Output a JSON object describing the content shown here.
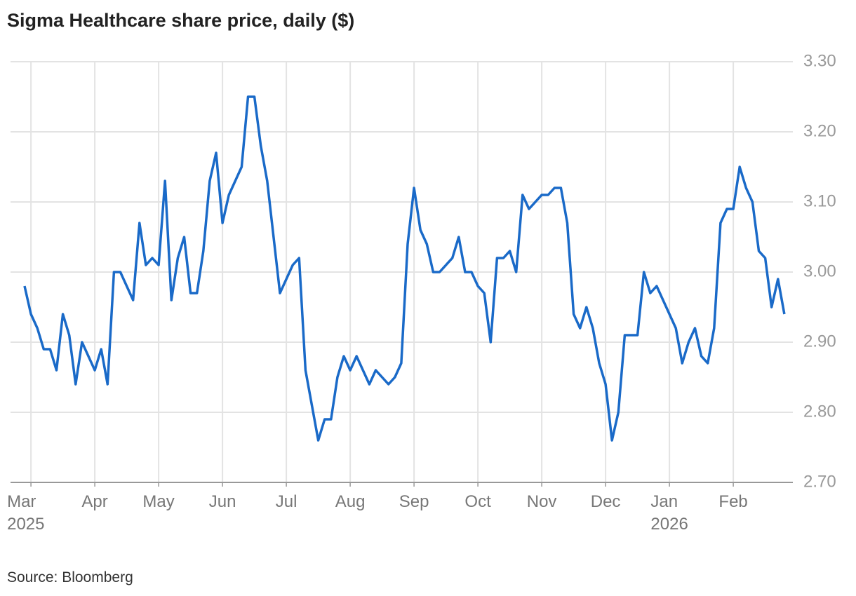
{
  "chart_data": {
    "type": "line",
    "title": "Sigma Healthcare share price, daily ($)",
    "source": "Source: Bloomberg",
    "categories": [
      null,
      "Mar\n2025",
      null,
      null,
      null,
      null,
      null,
      null,
      null,
      null,
      null,
      "Apr",
      null,
      null,
      null,
      null,
      null,
      null,
      null,
      null,
      null,
      "May",
      null,
      null,
      null,
      null,
      null,
      null,
      null,
      null,
      null,
      "Jun",
      null,
      null,
      null,
      null,
      null,
      null,
      null,
      null,
      null,
      "Jul",
      null,
      null,
      null,
      null,
      null,
      null,
      null,
      null,
      null,
      "Aug",
      null,
      null,
      null,
      null,
      null,
      null,
      null,
      null,
      null,
      "Sep",
      null,
      null,
      null,
      null,
      null,
      null,
      null,
      null,
      null,
      "Oct",
      null,
      null,
      null,
      null,
      null,
      null,
      null,
      null,
      null,
      "Nov",
      null,
      null,
      null,
      null,
      null,
      null,
      null,
      null,
      null,
      "Dec",
      null,
      null,
      null,
      null,
      null,
      null,
      null,
      null,
      null,
      "Jan\n2026",
      null,
      null,
      null,
      null,
      null,
      null,
      null,
      null,
      null,
      "Feb",
      null,
      null,
      null,
      null,
      null,
      null,
      null,
      null
    ],
    "values": [
      2.98,
      2.94,
      2.92,
      2.89,
      2.89,
      2.86,
      2.94,
      2.91,
      2.84,
      2.9,
      2.88,
      2.86,
      2.89,
      2.84,
      3.0,
      3.0,
      2.98,
      2.96,
      3.07,
      3.01,
      3.02,
      3.01,
      3.13,
      2.96,
      3.02,
      3.05,
      2.97,
      2.97,
      3.03,
      3.13,
      3.17,
      3.07,
      3.11,
      3.13,
      3.15,
      3.25,
      3.25,
      3.18,
      3.13,
      3.05,
      2.97,
      2.99,
      3.01,
      3.02,
      2.86,
      2.81,
      2.76,
      2.79,
      2.79,
      2.85,
      2.88,
      2.86,
      2.88,
      2.86,
      2.84,
      2.86,
      2.85,
      2.84,
      2.85,
      2.87,
      3.04,
      3.12,
      3.06,
      3.04,
      3.0,
      3.0,
      3.01,
      3.02,
      3.05,
      3.0,
      3.0,
      2.98,
      2.97,
      2.9,
      3.02,
      3.02,
      3.03,
      3.0,
      3.11,
      3.09,
      3.1,
      3.11,
      3.11,
      3.12,
      3.12,
      3.07,
      2.94,
      2.92,
      2.95,
      2.92,
      2.87,
      2.84,
      2.76,
      2.8,
      2.91,
      2.91,
      2.91,
      3.0,
      2.97,
      2.98,
      2.96,
      2.94,
      2.92,
      2.87,
      2.9,
      2.92,
      2.88,
      2.87,
      2.92,
      3.07,
      3.09,
      3.09,
      3.15,
      3.12,
      3.1,
      3.03,
      3.02,
      2.95,
      2.99,
      2.94
    ],
    "color": "#1a6ac8",
    "ylim": [
      2.7,
      3.3
    ],
    "yticks": [
      {
        "value": 2.7,
        "label": "2.70"
      },
      {
        "value": 2.8,
        "label": "2.80"
      },
      {
        "value": 2.9,
        "label": "2.90"
      },
      {
        "value": 3.0,
        "label": "3.00"
      },
      {
        "value": 3.1,
        "label": "3.10"
      },
      {
        "value": 3.2,
        "label": "3.20"
      },
      {
        "value": 3.3,
        "label": "3.30"
      }
    ],
    "grid": true
  }
}
